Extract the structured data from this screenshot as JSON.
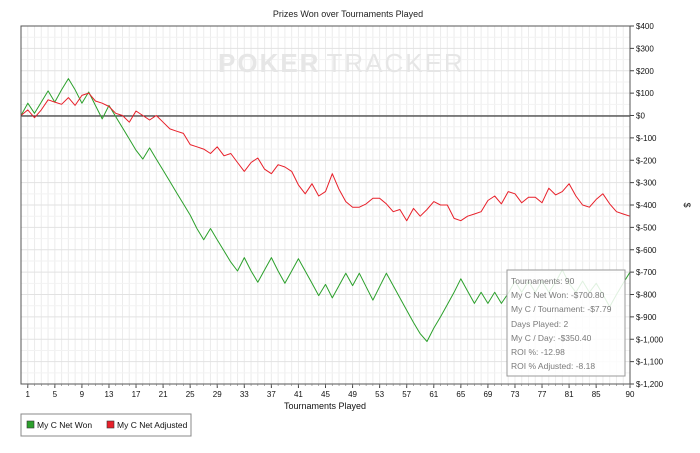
{
  "chart_data": {
    "type": "line",
    "title": "Prizes Won over Tournaments Played",
    "xlabel": "Tournaments Played",
    "ylabel": "$",
    "watermark": {
      "part1": "POKER",
      "part2": "TRACKER"
    },
    "xlim": [
      0,
      90
    ],
    "ylim": [
      -1200,
      400
    ],
    "x_ticks": [
      1,
      5,
      9,
      13,
      17,
      21,
      25,
      29,
      33,
      37,
      41,
      45,
      49,
      53,
      57,
      61,
      65,
      69,
      73,
      77,
      81,
      85,
      90
    ],
    "y_ticks": [
      400,
      300,
      200,
      100,
      0,
      -100,
      -200,
      -300,
      -400,
      -500,
      -600,
      -700,
      -800,
      -900,
      -1000,
      -1100,
      -1200
    ],
    "y_tick_labels": [
      "$400",
      "$300",
      "$200",
      "$100",
      "$0",
      "$-100",
      "$-200",
      "$-300",
      "$-400",
      "$-500",
      "$-600",
      "$-700",
      "$-800",
      "$-900",
      "$-1,000",
      "$-1,100",
      "$-1,200"
    ],
    "grid": true,
    "legend_position": "bottom-left",
    "series": [
      {
        "name": "My C Net Won",
        "color": "#2ca02c",
        "points": [
          [
            0,
            0
          ],
          [
            1,
            55
          ],
          [
            2,
            10
          ],
          [
            3,
            60
          ],
          [
            4,
            110
          ],
          [
            5,
            60
          ],
          [
            6,
            115
          ],
          [
            7,
            165
          ],
          [
            8,
            115
          ],
          [
            9,
            55
          ],
          [
            10,
            105
          ],
          [
            11,
            45
          ],
          [
            12,
            -15
          ],
          [
            13,
            45
          ],
          [
            14,
            -5
          ],
          [
            15,
            -55
          ],
          [
            16,
            -105
          ],
          [
            17,
            -155
          ],
          [
            18,
            -195
          ],
          [
            19,
            -145
          ],
          [
            20,
            -195
          ],
          [
            21,
            -245
          ],
          [
            22,
            -295
          ],
          [
            23,
            -345
          ],
          [
            24,
            -395
          ],
          [
            25,
            -445
          ],
          [
            26,
            -505
          ],
          [
            27,
            -555
          ],
          [
            28,
            -505
          ],
          [
            29,
            -555
          ],
          [
            30,
            -605
          ],
          [
            31,
            -655
          ],
          [
            32,
            -695
          ],
          [
            33,
            -635
          ],
          [
            34,
            -695
          ],
          [
            35,
            -745
          ],
          [
            36,
            -690
          ],
          [
            37,
            -635
          ],
          [
            38,
            -695
          ],
          [
            39,
            -750
          ],
          [
            40,
            -695
          ],
          [
            41,
            -640
          ],
          [
            42,
            -695
          ],
          [
            43,
            -750
          ],
          [
            44,
            -805
          ],
          [
            45,
            -755
          ],
          [
            46,
            -815
          ],
          [
            47,
            -760
          ],
          [
            48,
            -705
          ],
          [
            49,
            -760
          ],
          [
            50,
            -705
          ],
          [
            51,
            -765
          ],
          [
            52,
            -825
          ],
          [
            53,
            -765
          ],
          [
            54,
            -705
          ],
          [
            55,
            -760
          ],
          [
            56,
            -815
          ],
          [
            57,
            -870
          ],
          [
            58,
            -925
          ],
          [
            59,
            -975
          ],
          [
            60,
            -1010
          ],
          [
            61,
            -950
          ],
          [
            62,
            -900
          ],
          [
            63,
            -845
          ],
          [
            64,
            -790
          ],
          [
            65,
            -730
          ],
          [
            66,
            -785
          ],
          [
            67,
            -840
          ],
          [
            68,
            -790
          ],
          [
            69,
            -840
          ],
          [
            70,
            -790
          ],
          [
            71,
            -840
          ],
          [
            72,
            -795
          ],
          [
            73,
            -740
          ],
          [
            74,
            -790
          ],
          [
            75,
            -740
          ],
          [
            76,
            -790
          ],
          [
            77,
            -740
          ],
          [
            78,
            -790
          ],
          [
            79,
            -745
          ],
          [
            80,
            -690
          ],
          [
            81,
            -750
          ],
          [
            82,
            -790
          ],
          [
            83,
            -740
          ],
          [
            84,
            -790
          ],
          [
            85,
            -750
          ],
          [
            86,
            -800
          ],
          [
            87,
            -855
          ],
          [
            88,
            -800
          ],
          [
            89,
            -750
          ],
          [
            90,
            -700
          ]
        ]
      },
      {
        "name": "My C Net Adjusted",
        "color": "#e8202a",
        "points": [
          [
            0,
            0
          ],
          [
            1,
            25
          ],
          [
            2,
            -10
          ],
          [
            3,
            25
          ],
          [
            4,
            70
          ],
          [
            5,
            60
          ],
          [
            6,
            50
          ],
          [
            7,
            80
          ],
          [
            8,
            45
          ],
          [
            9,
            90
          ],
          [
            10,
            100
          ],
          [
            11,
            65
          ],
          [
            12,
            55
          ],
          [
            13,
            40
          ],
          [
            14,
            10
          ],
          [
            15,
            0
          ],
          [
            16,
            -30
          ],
          [
            17,
            20
          ],
          [
            18,
            0
          ],
          [
            19,
            -20
          ],
          [
            20,
            0
          ],
          [
            21,
            -30
          ],
          [
            22,
            -60
          ],
          [
            23,
            -70
          ],
          [
            24,
            -80
          ],
          [
            25,
            -130
          ],
          [
            26,
            -140
          ],
          [
            27,
            -150
          ],
          [
            28,
            -170
          ],
          [
            29,
            -140
          ],
          [
            30,
            -180
          ],
          [
            31,
            -170
          ],
          [
            32,
            -210
          ],
          [
            33,
            -250
          ],
          [
            34,
            -210
          ],
          [
            35,
            -190
          ],
          [
            36,
            -240
          ],
          [
            37,
            -260
          ],
          [
            38,
            -220
          ],
          [
            39,
            -230
          ],
          [
            40,
            -250
          ],
          [
            41,
            -310
          ],
          [
            42,
            -350
          ],
          [
            43,
            -305
          ],
          [
            44,
            -360
          ],
          [
            45,
            -340
          ],
          [
            46,
            -260
          ],
          [
            47,
            -330
          ],
          [
            48,
            -385
          ],
          [
            49,
            -410
          ],
          [
            50,
            -410
          ],
          [
            51,
            -395
          ],
          [
            52,
            -370
          ],
          [
            53,
            -370
          ],
          [
            54,
            -395
          ],
          [
            55,
            -430
          ],
          [
            56,
            -420
          ],
          [
            57,
            -470
          ],
          [
            58,
            -415
          ],
          [
            59,
            -450
          ],
          [
            60,
            -420
          ],
          [
            61,
            -385
          ],
          [
            62,
            -400
          ],
          [
            63,
            -400
          ],
          [
            64,
            -460
          ],
          [
            65,
            -470
          ],
          [
            66,
            -450
          ],
          [
            67,
            -440
          ],
          [
            68,
            -430
          ],
          [
            69,
            -380
          ],
          [
            70,
            -360
          ],
          [
            71,
            -395
          ],
          [
            72,
            -340
          ],
          [
            73,
            -350
          ],
          [
            74,
            -390
          ],
          [
            75,
            -365
          ],
          [
            76,
            -365
          ],
          [
            77,
            -390
          ],
          [
            78,
            -325
          ],
          [
            79,
            -355
          ],
          [
            80,
            -340
          ],
          [
            81,
            -305
          ],
          [
            82,
            -360
          ],
          [
            83,
            -400
          ],
          [
            84,
            -410
          ],
          [
            85,
            -375
          ],
          [
            86,
            -350
          ],
          [
            87,
            -395
          ],
          [
            88,
            -430
          ],
          [
            89,
            -440
          ],
          [
            90,
            -450
          ],
          [
            91,
            -440
          ]
        ]
      }
    ],
    "tooltip": {
      "tournaments": "Tournaments: 90",
      "net_won": "My C Net Won: -$700.80",
      "per_tournament": "My C / Tournament: -$7.79",
      "days_played": "Days Played: 2",
      "per_day": "My C / Day: -$350.40",
      "roi": "ROI %: -12.98",
      "roi_adjusted": "ROI % Adjusted: -8.18"
    }
  }
}
